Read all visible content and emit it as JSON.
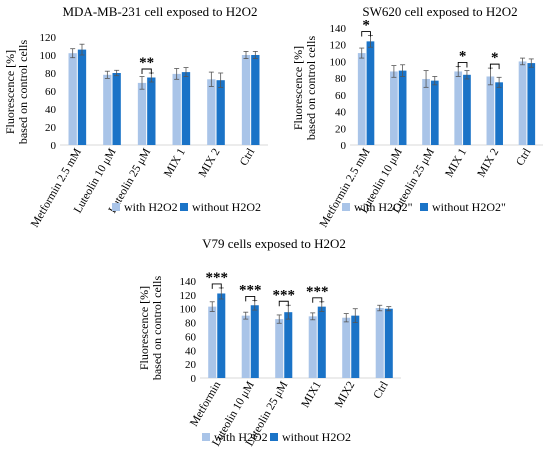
{
  "colors": {
    "with": "#a9c4e8",
    "without": "#1a73c7",
    "axis": "#d9d9d9",
    "text": "#000000"
  },
  "chart_data": [
    {
      "type": "bar",
      "title": "MDA-MB-231 cell exposed to H2O2",
      "ylabel_line1": "Fluorescence [%]",
      "ylabel_line2": "based on control cells",
      "ylim": [
        0,
        120
      ],
      "yticks": [
        0,
        20,
        40,
        60,
        80,
        100,
        120
      ],
      "categories": [
        "Metformin 2.5 mM",
        "Luteolin 10 μM",
        "Luteolin 25 μM",
        "MIX 1",
        "MIX 2",
        "Ctrl"
      ],
      "series": [
        {
          "name": "with H2O2",
          "values": [
            102,
            78,
            69,
            79,
            73,
            100
          ],
          "errors": [
            5,
            4,
            7,
            6,
            8,
            4
          ]
        },
        {
          "name": "without H2O2",
          "values": [
            106,
            80,
            75,
            81,
            72,
            100
          ],
          "errors": [
            6,
            3,
            5,
            5,
            8,
            4
          ]
        }
      ],
      "annotations": [
        {
          "category_index": 2,
          "label": "**"
        }
      ]
    },
    {
      "type": "bar",
      "title": "SW620 cell exposed to H2O2",
      "ylabel_line1": "Fluorescence [%]",
      "ylabel_line2": "based on control cells",
      "ylim": [
        0,
        140
      ],
      "yticks": [
        0,
        20,
        40,
        60,
        80,
        100,
        120,
        140
      ],
      "categories": [
        "Metformin 2.5 mM",
        "Luteolin 10 μM",
        "Luteolin 25 μM",
        "MIX 1",
        "MIX 2",
        "Ctrl"
      ],
      "series": [
        {
          "name": "with H2O2\"",
          "values": [
            110,
            88,
            79,
            88,
            82,
            100
          ],
          "errors": [
            6,
            7,
            10,
            6,
            10,
            4
          ]
        },
        {
          "name": "without H2O2\"",
          "values": [
            124,
            89,
            77,
            84,
            75,
            98
          ],
          "errors": [
            7,
            7,
            5,
            5,
            6,
            5
          ]
        }
      ],
      "annotations": [
        {
          "category_index": 0,
          "label": "*"
        },
        {
          "category_index": 3,
          "label": "*"
        },
        {
          "category_index": 4,
          "label": "*"
        }
      ]
    },
    {
      "type": "bar",
      "title": "V79 cells exposed to H2O2",
      "ylabel_line1": "Fluorescence [%]",
      "ylabel_line2": "based on control cells",
      "ylim": [
        0,
        140
      ],
      "yticks": [
        0,
        20,
        40,
        60,
        80,
        100,
        120,
        140
      ],
      "categories": [
        "Metformin",
        "Luteolin 10 μM",
        "Luteolin 25 μM",
        "MIX1",
        "MIX2",
        "Ctrl"
      ],
      "series": [
        {
          "name": "with H2O2",
          "values": [
            103,
            90,
            85,
            89,
            87,
            101
          ],
          "errors": [
            7,
            5,
            6,
            5,
            6,
            4
          ]
        },
        {
          "name": "without H2O2",
          "values": [
            122,
            105,
            95,
            103,
            90,
            100
          ],
          "errors": [
            8,
            7,
            10,
            7,
            10,
            3
          ]
        }
      ],
      "annotations": [
        {
          "category_index": 0,
          "label": "***"
        },
        {
          "category_index": 1,
          "label": "***"
        },
        {
          "category_index": 2,
          "label": "***"
        },
        {
          "category_index": 3,
          "label": "***"
        }
      ]
    }
  ]
}
